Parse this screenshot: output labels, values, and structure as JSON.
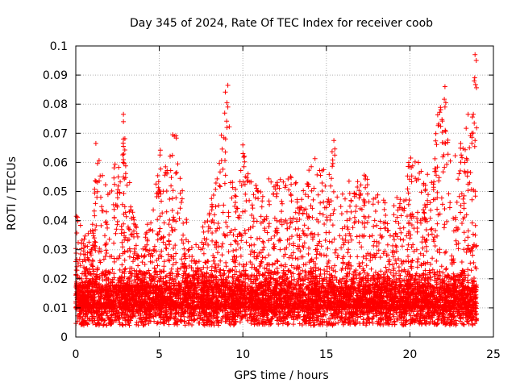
{
  "chart_data": {
    "type": "scatter",
    "title": "Day 345 of 2024, Rate Of TEC Index for receiver coob",
    "xlabel": "GPS time / hours",
    "ylabel": "ROTI / TECUs",
    "xlim": [
      0,
      25
    ],
    "ylim": [
      0,
      0.1
    ],
    "x_ticks": [
      0,
      5,
      10,
      15,
      20,
      25
    ],
    "x_tick_labels": [
      "0",
      "5",
      "10",
      "15",
      "20",
      "25"
    ],
    "y_ticks": [
      0,
      0.01,
      0.02,
      0.03,
      0.04,
      0.05,
      0.06,
      0.07,
      0.08,
      0.09,
      0.1
    ],
    "y_tick_labels": [
      "0",
      "0.01",
      "0.02",
      "0.03",
      "0.04",
      "0.05",
      "0.06",
      "0.07",
      "0.08",
      "0.09",
      "0.1"
    ],
    "grid": true,
    "marker": "+",
    "series_color": "#ff0000",
    "series": [
      {
        "name": "ROTI",
        "x_range": [
          0,
          24
        ],
        "description_of_envelope": [
          [
            0.0,
            0.044
          ],
          [
            0.5,
            0.035
          ],
          [
            1.0,
            0.04
          ],
          [
            1.2,
            0.066
          ],
          [
            1.5,
            0.06
          ],
          [
            2.0,
            0.05
          ],
          [
            2.8,
            0.076
          ],
          [
            3.5,
            0.04
          ],
          [
            4.0,
            0.037
          ],
          [
            4.5,
            0.04
          ],
          [
            5.0,
            0.065
          ],
          [
            5.5,
            0.06
          ],
          [
            6.0,
            0.07
          ],
          [
            6.5,
            0.045
          ],
          [
            7.0,
            0.03
          ],
          [
            8.0,
            0.043
          ],
          [
            9.0,
            0.087
          ],
          [
            9.5,
            0.05
          ],
          [
            10.0,
            0.066
          ],
          [
            11.0,
            0.05
          ],
          [
            12.0,
            0.058
          ],
          [
            13.0,
            0.055
          ],
          [
            14.0,
            0.06
          ],
          [
            15.0,
            0.065
          ],
          [
            15.5,
            0.067
          ],
          [
            16.0,
            0.05
          ],
          [
            17.0,
            0.06
          ],
          [
            18.0,
            0.05
          ],
          [
            19.0,
            0.045
          ],
          [
            20.0,
            0.062
          ],
          [
            21.0,
            0.06
          ],
          [
            22.0,
            0.086
          ],
          [
            22.5,
            0.06
          ],
          [
            23.0,
            0.067
          ],
          [
            23.5,
            0.077
          ],
          [
            23.9,
            0.097
          ]
        ],
        "notable_points": [
          {
            "x": 1.2,
            "y": 0.0665
          },
          {
            "x": 2.85,
            "y": 0.0765
          },
          {
            "x": 2.85,
            "y": 0.074
          },
          {
            "x": 2.85,
            "y": 0.068
          },
          {
            "x": 2.85,
            "y": 0.0655
          },
          {
            "x": 2.85,
            "y": 0.055
          },
          {
            "x": 5.8,
            "y": 0.0695
          },
          {
            "x": 5.9,
            "y": 0.069
          },
          {
            "x": 9.1,
            "y": 0.0865
          },
          {
            "x": 9.05,
            "y": 0.0805
          },
          {
            "x": 9.1,
            "y": 0.079
          },
          {
            "x": 9.05,
            "y": 0.072
          },
          {
            "x": 10.0,
            "y": 0.066
          },
          {
            "x": 15.45,
            "y": 0.0675
          },
          {
            "x": 15.5,
            "y": 0.0625
          },
          {
            "x": 22.1,
            "y": 0.086
          },
          {
            "x": 22.15,
            "y": 0.0805
          },
          {
            "x": 22.1,
            "y": 0.079
          },
          {
            "x": 23.9,
            "y": 0.097
          },
          {
            "x": 23.85,
            "y": 0.088
          },
          {
            "x": 23.8,
            "y": 0.0765
          },
          {
            "x": 23.85,
            "y": 0.0735
          },
          {
            "x": 23.9,
            "y": 0.0675
          },
          {
            "x": 20.05,
            "y": 0.0615
          }
        ]
      }
    ]
  }
}
